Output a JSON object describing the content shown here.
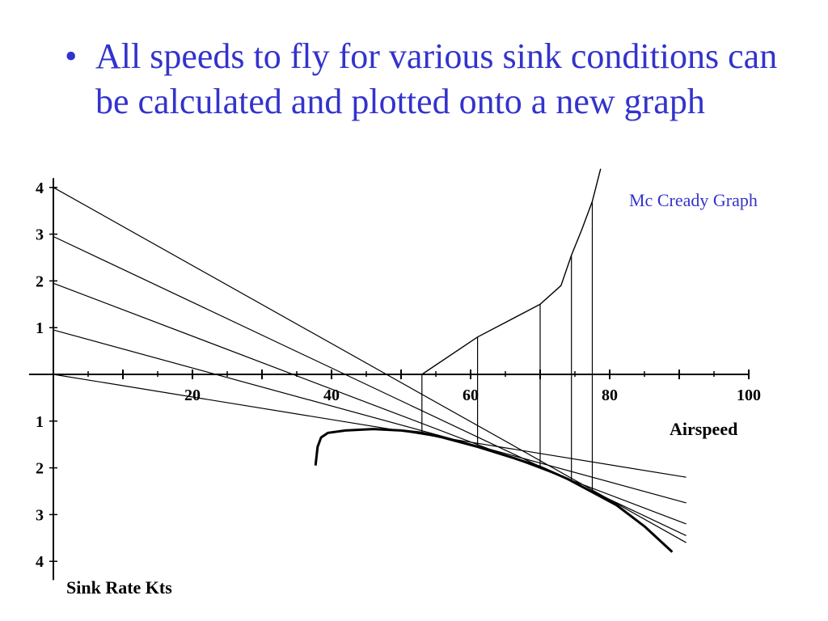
{
  "slide": {
    "bullet": "•",
    "heading": "All speeds to fly for various sink conditions can be calculated and plotted onto a new graph"
  },
  "colors": {
    "heading": "#3333cc",
    "ink": "#000000"
  },
  "chart_data": {
    "type": "line",
    "title": "",
    "annotation": "Mc Cready Graph",
    "xlabel": "Airspeed",
    "ylabel": "Sink Rate Kts",
    "xlim": [
      -3.5,
      100
    ],
    "ylim": [
      -4.4,
      4.2
    ],
    "x_ticks": [
      20,
      40,
      60,
      80,
      100
    ],
    "y_ticks_upper": [
      1,
      2,
      3,
      4
    ],
    "y_ticks_lower": [
      1,
      2,
      3,
      4
    ],
    "grid": false,
    "polar_curve": [
      [
        37.7,
        -1.95
      ],
      [
        38,
        -1.55
      ],
      [
        38.5,
        -1.35
      ],
      [
        39.5,
        -1.25
      ],
      [
        42,
        -1.2
      ],
      [
        46,
        -1.17
      ],
      [
        50,
        -1.2
      ],
      [
        53,
        -1.25
      ],
      [
        56,
        -1.35
      ],
      [
        61,
        -1.55
      ],
      [
        66,
        -1.78
      ],
      [
        70,
        -1.98
      ],
      [
        74,
        -2.24
      ],
      [
        77,
        -2.48
      ],
      [
        81,
        -2.8
      ],
      [
        85,
        -3.25
      ],
      [
        89,
        -3.8
      ]
    ],
    "tangent_lines": [
      {
        "lift": 0,
        "speed_to_fly": 53,
        "points": [
          [
            0,
            0
          ],
          [
            91,
            -2.2
          ]
        ]
      },
      {
        "lift": 1,
        "speed_to_fly": 61,
        "points": [
          [
            0,
            0.95
          ],
          [
            91,
            -2.75
          ]
        ]
      },
      {
        "lift": 2,
        "speed_to_fly": 70,
        "points": [
          [
            0,
            1.95
          ],
          [
            91,
            -3.2
          ]
        ]
      },
      {
        "lift": 3,
        "speed_to_fly": 74.5,
        "points": [
          [
            0,
            2.95
          ],
          [
            91,
            -3.45
          ]
        ]
      },
      {
        "lift": 4,
        "speed_to_fly": 77.5,
        "points": [
          [
            0,
            4.0
          ],
          [
            91,
            -3.6
          ]
        ]
      }
    ],
    "speed_to_fly_curve": [
      [
        53,
        0
      ],
      [
        61,
        0.8
      ],
      [
        70,
        1.5
      ],
      [
        73,
        1.9
      ],
      [
        74.5,
        2.55
      ],
      [
        76,
        3.1
      ],
      [
        77.5,
        3.7
      ],
      [
        78.7,
        4.4
      ]
    ]
  }
}
